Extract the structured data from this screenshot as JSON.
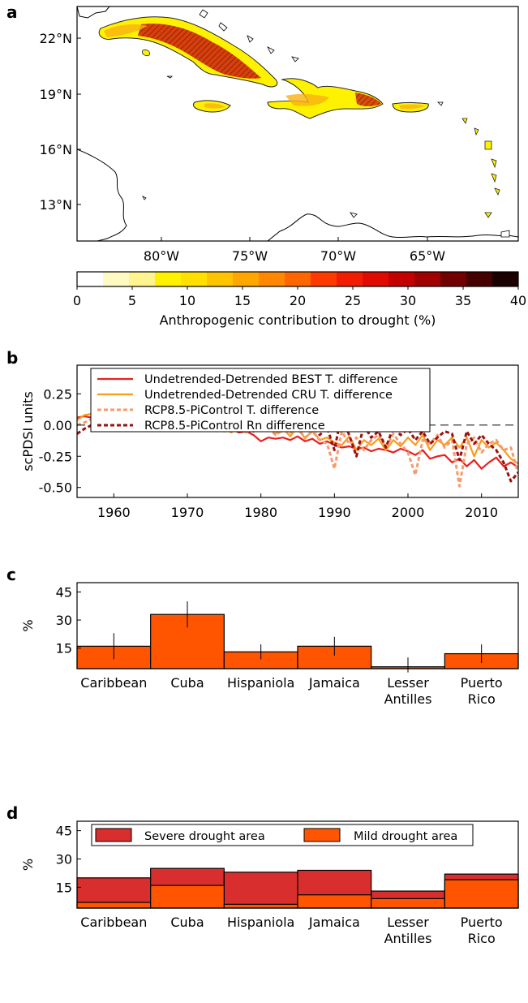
{
  "panel_labels": [
    "a",
    "b",
    "c",
    "d"
  ],
  "colors": {
    "best": "#e8201f",
    "cru": "#f99c1a",
    "rcp_t": "#f79a6e",
    "rcp_rn": "#9b1010",
    "bar": "#ff5500",
    "severe": "#d92e2e",
    "mild": "#ff5500",
    "land_light": "#fff200",
    "land_mid": "#f9b211",
    "land_dark": "#d2200e"
  },
  "map": {
    "lat_labels": [
      "22°N",
      "19°N",
      "16°N",
      "13°N"
    ],
    "lon_labels": [
      "80°W",
      "75°W",
      "70°W",
      "65°W"
    ],
    "colorbar": {
      "ticks": [
        "0",
        "5",
        "10",
        "15",
        "20",
        "25",
        "30",
        "35",
        "40"
      ],
      "label": "Anthropogenic contribution to drought (%)",
      "min": 0,
      "max": 40,
      "step": 2.5,
      "colors": [
        "#ffffff",
        "#fff9c2",
        "#fff48d",
        "#fff200",
        "#ffe000",
        "#ffc400",
        "#ffa600",
        "#ff8800",
        "#ff6600",
        "#ff3a00",
        "#f21d00",
        "#e00a00",
        "#c40000",
        "#a00000",
        "#720000",
        "#460000",
        "#1c0000"
      ]
    }
  },
  "chart_data": [
    {
      "type": "line",
      "ylabel": "scPDSI units",
      "xlim": [
        1955,
        2015
      ],
      "ylim": [
        -0.58,
        0.48
      ],
      "xticks": [
        "1960",
        "1970",
        "1980",
        "1990",
        "2000",
        "2010"
      ],
      "yticks": [
        "0.25",
        "0.00",
        "-0.25",
        "-0.50"
      ],
      "x": [
        1955,
        1956,
        1957,
        1958,
        1959,
        1960,
        1961,
        1962,
        1963,
        1964,
        1965,
        1966,
        1967,
        1968,
        1969,
        1970,
        1971,
        1972,
        1973,
        1974,
        1975,
        1976,
        1977,
        1978,
        1979,
        1980,
        1981,
        1982,
        1983,
        1984,
        1985,
        1986,
        1987,
        1988,
        1989,
        1990,
        1991,
        1992,
        1993,
        1994,
        1995,
        1996,
        1997,
        1998,
        1999,
        2000,
        2001,
        2002,
        2003,
        2004,
        2005,
        2006,
        2007,
        2008,
        2009,
        2010,
        2011,
        2012,
        2013,
        2014,
        2015
      ],
      "series": [
        {
          "name": "Undetrended-Detrended BEST T. difference",
          "style": "solid",
          "values": [
            0.06,
            0.07,
            0.06,
            0.05,
            0.04,
            0.05,
            0.03,
            0.04,
            0.02,
            0.03,
            0.01,
            0.02,
            0.0,
            0.01,
            0.0,
            -0.02,
            -0.02,
            -0.03,
            -0.02,
            -0.05,
            -0.04,
            -0.03,
            -0.06,
            -0.05,
            -0.08,
            -0.13,
            -0.1,
            -0.11,
            -0.1,
            -0.12,
            -0.09,
            -0.13,
            -0.11,
            -0.15,
            -0.13,
            -0.16,
            -0.18,
            -0.17,
            -0.19,
            -0.18,
            -0.21,
            -0.19,
            -0.2,
            -0.22,
            -0.19,
            -0.21,
            -0.24,
            -0.2,
            -0.27,
            -0.25,
            -0.24,
            -0.3,
            -0.27,
            -0.33,
            -0.28,
            -0.35,
            -0.3,
            -0.26,
            -0.33,
            -0.3,
            -0.34
          ]
        },
        {
          "name": "Undetrended-Detrended CRU T. difference",
          "style": "solid",
          "values": [
            0.04,
            0.08,
            0.09,
            0.05,
            0.12,
            0.03,
            0.1,
            0.06,
            0.05,
            0.07,
            0.02,
            0.04,
            -0.01,
            0.07,
            0.01,
            0.06,
            -0.03,
            0.0,
            -0.04,
            0.01,
            -0.03,
            -0.06,
            0.0,
            -0.04,
            -0.02,
            -0.05,
            -0.02,
            -0.07,
            -0.03,
            -0.09,
            -0.01,
            -0.11,
            -0.04,
            -0.12,
            -0.1,
            -0.14,
            -0.16,
            -0.09,
            -0.2,
            -0.12,
            -0.16,
            -0.11,
            -0.2,
            -0.12,
            -0.17,
            -0.1,
            -0.16,
            -0.08,
            -0.2,
            -0.12,
            -0.16,
            -0.1,
            -0.18,
            -0.1,
            -0.25,
            -0.12,
            -0.18,
            -0.14,
            -0.2,
            -0.27,
            -0.31
          ]
        },
        {
          "name": "RCP8.5-PiControl T. difference",
          "style": "dashed",
          "values": [
            0.0,
            0.02,
            0.05,
            0.0,
            0.03,
            -0.01,
            0.04,
            0.02,
            0.0,
            0.03,
            0.01,
            -0.01,
            0.02,
            0.0,
            -0.02,
            0.01,
            -0.03,
            0.0,
            -0.04,
            -0.02,
            -0.05,
            -0.03,
            -0.02,
            -0.06,
            -0.03,
            -0.05,
            -0.02,
            -0.08,
            -0.04,
            -0.06,
            -0.03,
            -0.1,
            -0.05,
            -0.12,
            -0.15,
            -0.35,
            -0.05,
            -0.15,
            -0.1,
            -0.2,
            -0.12,
            -0.08,
            -0.18,
            -0.07,
            -0.15,
            -0.22,
            -0.4,
            -0.12,
            -0.15,
            -0.08,
            -0.18,
            -0.12,
            -0.49,
            -0.15,
            -0.1,
            -0.22,
            -0.15,
            -0.12,
            -0.2,
            -0.18,
            -0.39
          ]
        },
        {
          "name": "RCP8.5-PiControl Rn difference",
          "style": "dashed",
          "values": [
            -0.07,
            -0.03,
            0.0,
            0.03,
            0.0,
            0.04,
            0.0,
            0.05,
            0.02,
            0.04,
            0.0,
            0.03,
            -0.01,
            0.04,
            0.02,
            0.0,
            0.03,
            -0.01,
            0.02,
            0.0,
            -0.03,
            0.0,
            -0.02,
            0.0,
            -0.05,
            -0.03,
            0.0,
            -0.02,
            0.02,
            0.01,
            -0.01,
            -0.04,
            0.0,
            -0.08,
            -0.02,
            -0.2,
            0.09,
            -0.08,
            -0.25,
            0.0,
            -0.1,
            -0.05,
            -0.18,
            -0.02,
            -0.08,
            -0.03,
            -0.12,
            -0.05,
            -0.15,
            -0.1,
            -0.05,
            -0.07,
            -0.28,
            -0.05,
            -0.15,
            -0.08,
            -0.15,
            -0.2,
            -0.3,
            -0.45,
            -0.38
          ]
        }
      ],
      "zero_line": 0
    },
    {
      "type": "bar",
      "ylabel": "%",
      "ylim": [
        4,
        50
      ],
      "yticks": [
        "15",
        "30",
        "45"
      ],
      "categories": [
        "Caribbean",
        "Cuba",
        "Hispaniola",
        "Jamaica",
        "Lesser\nAntilles",
        "Puerto\nRico"
      ],
      "values": [
        16,
        33,
        13,
        16,
        5,
        12
      ],
      "err_low": [
        9,
        26,
        9,
        11,
        2,
        7
      ],
      "err_high": [
        23,
        40,
        17,
        21,
        10,
        17
      ]
    },
    {
      "type": "bar",
      "ylabel": "%",
      "ylim": [
        4,
        50
      ],
      "yticks": [
        "15",
        "30",
        "45"
      ],
      "categories": [
        "Caribbean",
        "Cuba",
        "Hispaniola",
        "Jamaica",
        "Lesser\nAntilles",
        "Puerto\nRico"
      ],
      "series": [
        {
          "name": "Severe drought area",
          "values": [
            20,
            25,
            23,
            24,
            13,
            22
          ]
        },
        {
          "name": "Mild drought area",
          "values": [
            7,
            16,
            6,
            11,
            9,
            19
          ]
        }
      ]
    }
  ]
}
